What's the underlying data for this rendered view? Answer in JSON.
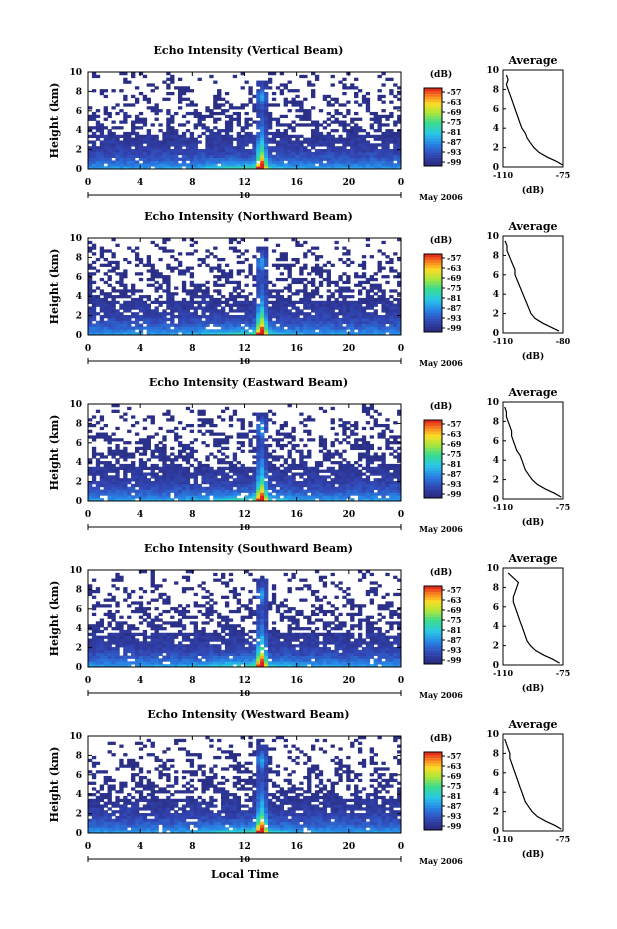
{
  "figure": {
    "x_axis_label": "Local Time",
    "date_label": "May 2006",
    "day_label": "10",
    "colorbar_unit": "(dB)",
    "profile_title": "Average",
    "profile_xlabel": "(dB)"
  },
  "chart_data": [
    {
      "type": "heatmap",
      "title": "Echo Intensity (Vertical Beam)",
      "ylabel": "Height (km)",
      "xlabel": "Local Time",
      "x_ticks": [
        "0",
        "4",
        "8",
        "12",
        "16",
        "20",
        "0"
      ],
      "y_ticks": [
        "0",
        "2",
        "4",
        "6",
        "8",
        "10"
      ],
      "xlim": [
        0,
        24
      ],
      "ylim": [
        0,
        10
      ],
      "colorbar_ticks": [
        "-57",
        "-63",
        "-69",
        "-75",
        "-81",
        "-87",
        "-93",
        "-99"
      ],
      "colorbar_range": [
        -99,
        -57
      ],
      "profile": {
        "title": "Average",
        "xlabel": "(dB)",
        "x_ticks": [
          "-110",
          "-75"
        ],
        "y_ticks": [
          "0",
          "2",
          "4",
          "6",
          "8",
          "10"
        ],
        "xlim": [
          -110,
          -75
        ],
        "ylim": [
          0,
          10
        ],
        "heights": [
          0.2,
          0.6,
          1.0,
          1.5,
          2.0,
          2.5,
          3.0,
          3.5,
          4.0,
          4.5,
          5.0,
          5.5,
          6.0,
          6.5,
          7.0,
          7.5,
          8.0,
          8.5,
          9.0,
          9.5
        ],
        "values": [
          -75,
          -79,
          -84,
          -89,
          -92,
          -94,
          -96,
          -97,
          -99,
          -100,
          -101,
          -102,
          -103,
          -104,
          -105,
          -106,
          -107,
          -108,
          -107,
          -108
        ]
      }
    },
    {
      "type": "heatmap",
      "title": "Echo Intensity (Northward Beam)",
      "ylabel": "Height (km)",
      "xlabel": "Local Time",
      "x_ticks": [
        "0",
        "4",
        "8",
        "12",
        "16",
        "20",
        "0"
      ],
      "y_ticks": [
        "0",
        "2",
        "4",
        "6",
        "8",
        "10"
      ],
      "xlim": [
        0,
        24
      ],
      "ylim": [
        0,
        10
      ],
      "colorbar_ticks": [
        "-57",
        "-63",
        "-69",
        "-75",
        "-81",
        "-87",
        "-93",
        "-99"
      ],
      "colorbar_range": [
        -99,
        -57
      ],
      "profile": {
        "title": "Average",
        "xlabel": "(dB)",
        "x_ticks": [
          "-110",
          "-80"
        ],
        "y_ticks": [
          "0",
          "2",
          "4",
          "6",
          "8",
          "10"
        ],
        "xlim": [
          -110,
          -80
        ],
        "ylim": [
          0,
          10
        ],
        "heights": [
          0.2,
          0.6,
          1.0,
          1.5,
          2.0,
          2.5,
          3.0,
          3.5,
          4.0,
          4.5,
          5.0,
          5.5,
          6.0,
          6.5,
          7.0,
          7.5,
          8.0,
          8.5,
          9.0,
          9.5
        ],
        "values": [
          -82,
          -86,
          -90,
          -94,
          -96,
          -97,
          -98,
          -99,
          -100,
          -101,
          -102,
          -103,
          -104,
          -104,
          -105,
          -106,
          -107,
          -108,
          -108,
          -109
        ]
      }
    },
    {
      "type": "heatmap",
      "title": "Echo Intensity (Eastward Beam)",
      "ylabel": "Height (km)",
      "xlabel": "Local Time",
      "x_ticks": [
        "0",
        "4",
        "8",
        "12",
        "16",
        "20",
        "0"
      ],
      "y_ticks": [
        "0",
        "2",
        "4",
        "6",
        "8",
        "10"
      ],
      "xlim": [
        0,
        24
      ],
      "ylim": [
        0,
        10
      ],
      "colorbar_ticks": [
        "-57",
        "-63",
        "-69",
        "-75",
        "-81",
        "-87",
        "-93",
        "-99"
      ],
      "colorbar_range": [
        -99,
        -57
      ],
      "profile": {
        "title": "Average",
        "xlabel": "(dB)",
        "x_ticks": [
          "-110",
          "-75"
        ],
        "y_ticks": [
          "0",
          "2",
          "4",
          "6",
          "8",
          "10"
        ],
        "xlim": [
          -110,
          -75
        ],
        "ylim": [
          0,
          10
        ],
        "heights": [
          0.2,
          0.6,
          1.0,
          1.5,
          2.0,
          2.5,
          3.0,
          3.5,
          4.0,
          4.5,
          5.0,
          5.5,
          6.0,
          6.5,
          7.0,
          7.5,
          8.0,
          8.5,
          9.0,
          9.5
        ],
        "values": [
          -76,
          -80,
          -85,
          -90,
          -93,
          -95,
          -97,
          -98,
          -99,
          -100,
          -102,
          -103,
          -104,
          -105,
          -105,
          -106,
          -107,
          -108,
          -108,
          -109
        ]
      }
    },
    {
      "type": "heatmap",
      "title": "Echo Intensity (Southward Beam)",
      "ylabel": "Height (km)",
      "xlabel": "Local Time",
      "x_ticks": [
        "0",
        "4",
        "8",
        "12",
        "16",
        "20",
        "0"
      ],
      "y_ticks": [
        "0",
        "2",
        "4",
        "6",
        "8",
        "10"
      ],
      "xlim": [
        0,
        24
      ],
      "ylim": [
        0,
        10
      ],
      "colorbar_ticks": [
        "-57",
        "-63",
        "-69",
        "-75",
        "-81",
        "-87",
        "-93",
        "-99"
      ],
      "colorbar_range": [
        -99,
        -57
      ],
      "profile": {
        "title": "Average",
        "xlabel": "(dB)",
        "x_ticks": [
          "-110",
          "-75"
        ],
        "y_ticks": [
          "0",
          "2",
          "4",
          "6",
          "8",
          "10"
        ],
        "xlim": [
          -110,
          -75
        ],
        "ylim": [
          0,
          10
        ],
        "heights": [
          0.2,
          0.6,
          1.0,
          1.5,
          2.0,
          2.5,
          3.0,
          3.5,
          4.0,
          4.5,
          5.0,
          5.5,
          6.0,
          6.5,
          7.0,
          7.5,
          8.0,
          8.5,
          9.0,
          9.5
        ],
        "values": [
          -77,
          -81,
          -86,
          -91,
          -94,
          -96,
          -97,
          -98,
          -99,
          -100,
          -101,
          -102,
          -103,
          -104,
          -104,
          -103,
          -102,
          -101,
          -104,
          -107
        ]
      }
    },
    {
      "type": "heatmap",
      "title": "Echo Intensity (Westward Beam)",
      "ylabel": "Height (km)",
      "xlabel": "Local Time",
      "x_ticks": [
        "0",
        "4",
        "8",
        "12",
        "16",
        "20",
        "0"
      ],
      "y_ticks": [
        "0",
        "2",
        "4",
        "6",
        "8",
        "10"
      ],
      "xlim": [
        0,
        24
      ],
      "ylim": [
        0,
        10
      ],
      "colorbar_ticks": [
        "-57",
        "-63",
        "-69",
        "-75",
        "-81",
        "-87",
        "-93",
        "-99"
      ],
      "colorbar_range": [
        -99,
        -57
      ],
      "profile": {
        "title": "Average",
        "xlabel": "(dB)",
        "x_ticks": [
          "-110",
          "-75"
        ],
        "y_ticks": [
          "0",
          "2",
          "4",
          "6",
          "8",
          "10"
        ],
        "xlim": [
          -110,
          -75
        ],
        "ylim": [
          0,
          10
        ],
        "heights": [
          0.2,
          0.6,
          1.0,
          1.5,
          2.0,
          2.5,
          3.0,
          3.5,
          4.0,
          4.5,
          5.0,
          5.5,
          6.0,
          6.5,
          7.0,
          7.5,
          8.0,
          8.5,
          9.0,
          9.5
        ],
        "values": [
          -76,
          -80,
          -85,
          -90,
          -93,
          -95,
          -97,
          -98,
          -99,
          -100,
          -101,
          -102,
          -103,
          -104,
          -105,
          -106,
          -106,
          -107,
          -108,
          -109
        ]
      }
    }
  ]
}
